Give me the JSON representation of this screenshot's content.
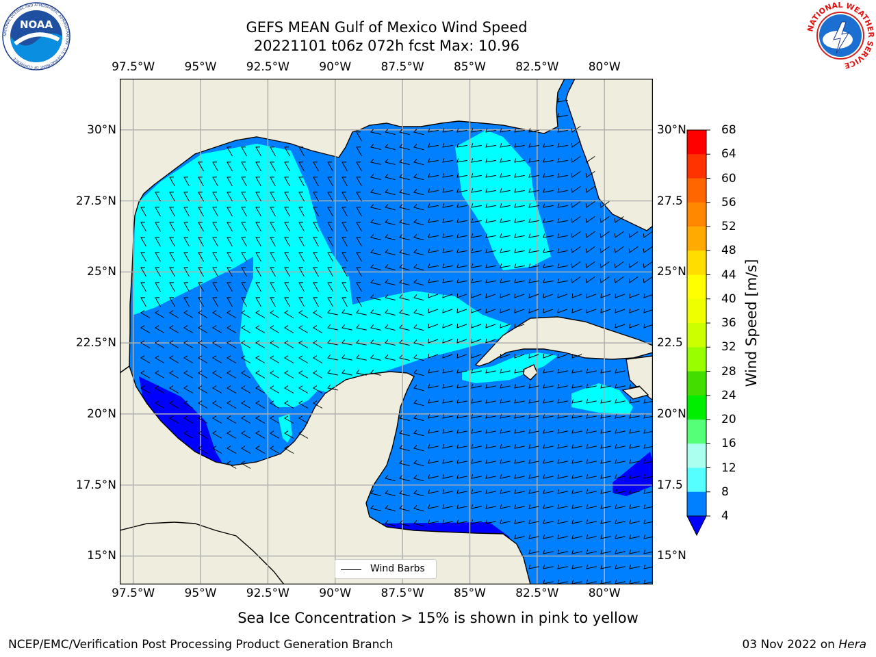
{
  "title": {
    "line1": "GEFS MEAN Gulf of Mexico Wind Speed",
    "line2": "20221101 t06z 072h fcst   Max: 10.96"
  },
  "logos": {
    "left": {
      "name": "noaa-logo",
      "text": "NOAA",
      "ring_text": "NATIONAL OCEANIC AND ATMOSPHERIC ADMINISTRATION · U.S. DEPARTMENT OF COMMERCE"
    },
    "right": {
      "name": "nws-logo",
      "ring_text": "NATIONAL WEATHER SERVICE"
    }
  },
  "map": {
    "lon_ticks": [
      "97.5°W",
      "95°W",
      "92.5°W",
      "90°W",
      "87.5°W",
      "85°W",
      "82.5°W",
      "80°W"
    ],
    "lat_ticks_left": [
      "30°N",
      "27.5°N",
      "25°N",
      "22.5°N",
      "20°N",
      "17.5°N",
      "15°N"
    ],
    "lat_ticks_right": [
      "30°N",
      "27.5",
      "25°N",
      "22.5",
      "20°N",
      "17.5",
      "15°N"
    ],
    "lon_range": [
      -98,
      -78.2
    ],
    "lat_range": [
      14,
      31.8
    ],
    "legend_label": "Wind Barbs",
    "colors": {
      "land": "#efeddd",
      "band_4_8": "#0080ff",
      "band_8_12": "#00ffff",
      "below_4": "#0000ff",
      "grid": "#b0b0b0"
    }
  },
  "colorbar": {
    "title": "Wind Speed [m/s]",
    "labels": [
      "68",
      "64",
      "60",
      "56",
      "52",
      "48",
      "44",
      "40",
      "36",
      "32",
      "28",
      "24",
      "20",
      "16",
      "12",
      "8",
      "4"
    ],
    "colors": [
      "#ff0000",
      "#ff3300",
      "#ff6600",
      "#ff8800",
      "#ffaa00",
      "#ffdd00",
      "#ffff00",
      "#eeff00",
      "#ccff00",
      "#99ff00",
      "#44dd00",
      "#00ee00",
      "#55ff77",
      "#aaffee",
      "#55ffff",
      "#00ffff",
      "#0080ff"
    ],
    "extend_color": "#0000ff"
  },
  "note": "Sea Ice Concentration > 15% is shown in pink to yellow",
  "footer": {
    "left": "NCEP/EMC/Verification Post Processing Product Generation Branch",
    "right_date": "03 Nov 2022 on ",
    "right_host": "Hera"
  }
}
